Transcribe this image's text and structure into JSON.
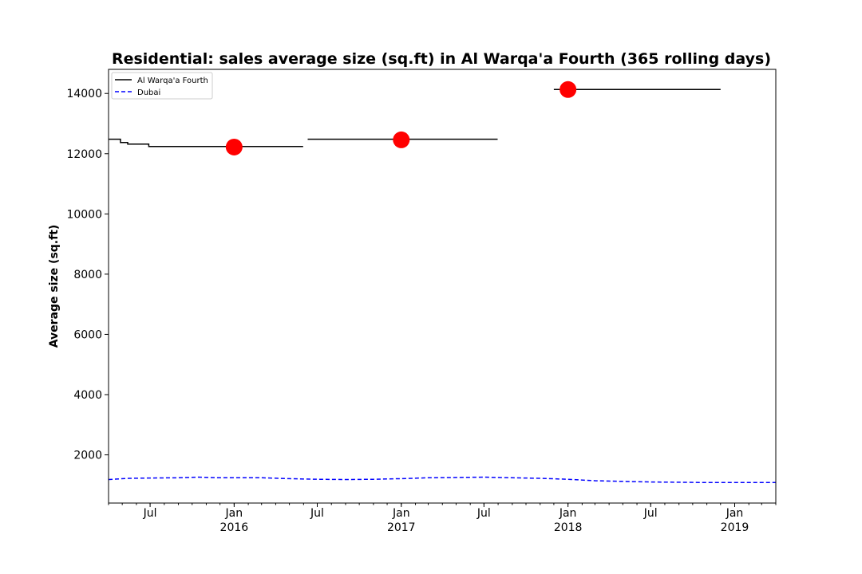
{
  "chart_data": {
    "type": "line",
    "title": "Residential: sales average size (sq.ft) in Al Warqa'a Fourth (365 rolling days)",
    "xlabel": "",
    "ylabel": "Average size (sq.ft)",
    "xlim": [
      "2015-04-01",
      "2019-04-01"
    ],
    "ylim": [
      400,
      14800
    ],
    "grid": false,
    "legend_position": "top-left",
    "yticks": [
      2000,
      4000,
      6000,
      8000,
      10000,
      12000,
      14000
    ],
    "xticks": [
      {
        "date": "2015-07-01",
        "label": "Jul",
        "year": ""
      },
      {
        "date": "2016-01-01",
        "label": "Jan",
        "year": "2016"
      },
      {
        "date": "2016-07-01",
        "label": "Jul",
        "year": ""
      },
      {
        "date": "2017-01-01",
        "label": "Jan",
        "year": "2017"
      },
      {
        "date": "2017-07-01",
        "label": "Jul",
        "year": ""
      },
      {
        "date": "2018-01-01",
        "label": "Jan",
        "year": "2018"
      },
      {
        "date": "2018-07-01",
        "label": "Jul",
        "year": ""
      },
      {
        "date": "2019-01-01",
        "label": "Jan",
        "year": "2019"
      }
    ],
    "series": [
      {
        "name": "Al Warqa'a Fourth",
        "color": "#000000",
        "style": "solid",
        "segments": [
          [
            {
              "x": "2015-04-01",
              "y": 12480
            },
            {
              "x": "2015-04-27",
              "y": 12480
            },
            {
              "x": "2015-04-27",
              "y": 12370
            },
            {
              "x": "2015-05-13",
              "y": 12370
            },
            {
              "x": "2015-05-13",
              "y": 12320
            },
            {
              "x": "2015-06-28",
              "y": 12320
            },
            {
              "x": "2015-06-28",
              "y": 12240
            },
            {
              "x": "2016-05-31",
              "y": 12240
            }
          ],
          [
            {
              "x": "2016-06-10",
              "y": 12480
            },
            {
              "x": "2017-07-31",
              "y": 12480
            }
          ],
          [
            {
              "x": "2017-12-01",
              "y": 14130
            },
            {
              "x": "2018-12-01",
              "y": 14130
            }
          ]
        ]
      },
      {
        "name": "Dubai",
        "color": "#0000ff",
        "style": "dashed",
        "points": [
          {
            "x": "2015-04-01",
            "y": 1180
          },
          {
            "x": "2015-05-15",
            "y": 1220
          },
          {
            "x": "2015-07-01",
            "y": 1230
          },
          {
            "x": "2015-09-01",
            "y": 1240
          },
          {
            "x": "2015-10-15",
            "y": 1260
          },
          {
            "x": "2015-12-01",
            "y": 1240
          },
          {
            "x": "2016-01-01",
            "y": 1240
          },
          {
            "x": "2016-03-01",
            "y": 1240
          },
          {
            "x": "2016-05-01",
            "y": 1210
          },
          {
            "x": "2016-07-01",
            "y": 1190
          },
          {
            "x": "2016-09-01",
            "y": 1180
          },
          {
            "x": "2016-11-01",
            "y": 1190
          },
          {
            "x": "2017-01-01",
            "y": 1210
          },
          {
            "x": "2017-03-01",
            "y": 1240
          },
          {
            "x": "2017-05-01",
            "y": 1250
          },
          {
            "x": "2017-07-01",
            "y": 1260
          },
          {
            "x": "2017-09-01",
            "y": 1240
          },
          {
            "x": "2017-11-01",
            "y": 1220
          },
          {
            "x": "2018-01-01",
            "y": 1190
          },
          {
            "x": "2018-03-01",
            "y": 1140
          },
          {
            "x": "2018-05-01",
            "y": 1120
          },
          {
            "x": "2018-07-01",
            "y": 1100
          },
          {
            "x": "2018-09-01",
            "y": 1090
          },
          {
            "x": "2018-11-01",
            "y": 1080
          },
          {
            "x": "2019-01-01",
            "y": 1080
          },
          {
            "x": "2019-04-01",
            "y": 1080
          }
        ]
      }
    ],
    "markers": [
      {
        "x": "2016-01-01",
        "y": 12220,
        "color": "#ff0000"
      },
      {
        "x": "2017-01-01",
        "y": 12460,
        "color": "#ff0000"
      },
      {
        "x": "2018-01-01",
        "y": 14130,
        "color": "#ff0000"
      }
    ]
  }
}
